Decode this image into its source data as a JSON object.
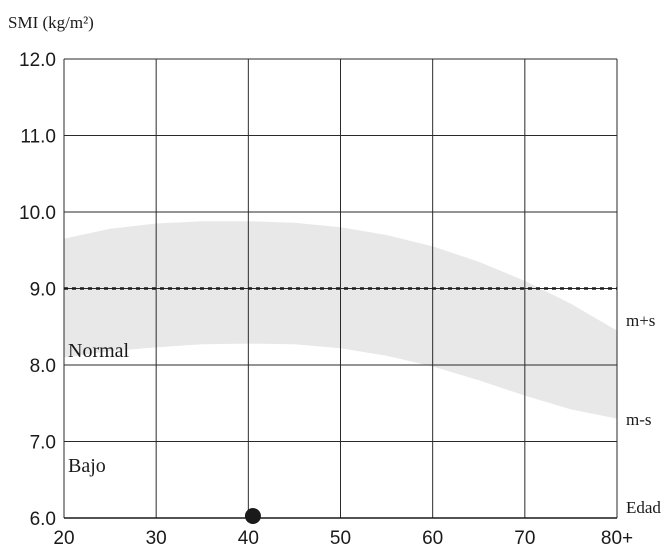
{
  "chart_data": {
    "type": "scatter",
    "title": "",
    "ylabel": "SMI (kg/m²)",
    "xlabel": "Edad",
    "ylim": [
      6.0,
      12.0
    ],
    "xlim": [
      20,
      80
    ],
    "y_ticks": [
      "6.0",
      "7.0",
      "8.0",
      "9.0",
      "10.0",
      "11.0",
      "12.0"
    ],
    "x_ticks": [
      "20",
      "30",
      "40",
      "50",
      "60",
      "70",
      "80+"
    ],
    "grid": true,
    "reference_line": {
      "y": 9.0,
      "style": "dotted"
    },
    "normal_band": {
      "x": [
        20,
        25,
        30,
        35,
        40,
        45,
        50,
        55,
        60,
        65,
        70,
        75,
        80
      ],
      "upper": [
        9.65,
        9.78,
        9.85,
        9.88,
        9.88,
        9.86,
        9.8,
        9.7,
        9.55,
        9.35,
        9.1,
        8.8,
        8.45
      ],
      "lower": [
        8.1,
        8.18,
        8.23,
        8.27,
        8.28,
        8.27,
        8.22,
        8.12,
        7.98,
        7.8,
        7.6,
        7.42,
        7.3
      ]
    },
    "points": [
      {
        "x": 40.5,
        "y": 6.0
      }
    ],
    "band_labels": {
      "upper": "m+s",
      "lower": "m-s"
    },
    "zone_labels": {
      "normal": "Normal",
      "low": "Bajo"
    },
    "colors": {
      "band": "#e8e8e8",
      "grid": "#2a2a2a",
      "point": "#1a1a1a"
    }
  }
}
